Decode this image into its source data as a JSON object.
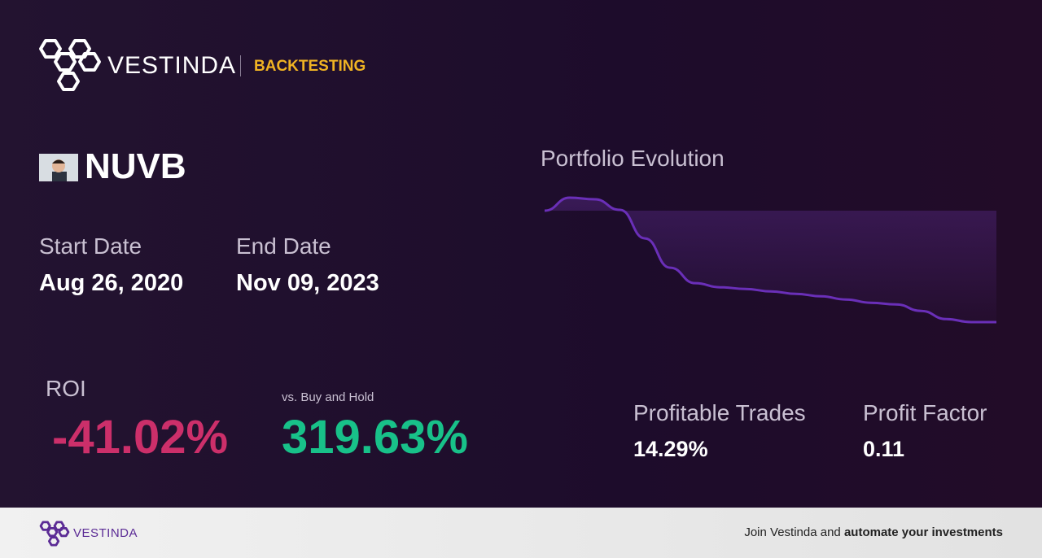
{
  "header": {
    "brand": "VESTINDA",
    "section": "BACKTESTING"
  },
  "asset": {
    "ticker": "NUVB"
  },
  "dates": {
    "start_label": "Start Date",
    "start": "Aug 26, 2020",
    "end_label": "End Date",
    "end": "Nov 09, 2023"
  },
  "roi": {
    "label": "ROI",
    "value": "-41.02%",
    "compare_label": "vs. Buy and Hold",
    "compare_value": "319.63%"
  },
  "stats": [
    {
      "label": "Profitable Trades",
      "value": "14.29%"
    },
    {
      "label": "Profit Factor",
      "value": "0.11"
    }
  ],
  "portfolio_chart": {
    "type": "line",
    "title": "Portfolio Evolution",
    "color": "#6a2fb8",
    "values": [
      100,
      104.8,
      104.2,
      100.3,
      89.8,
      79,
      73.3,
      71.8,
      71.2,
      70.3,
      69.4,
      68.5,
      67.3,
      66.1,
      65.5,
      63.1,
      60.1,
      58.98,
      58.98
    ]
  },
  "footer": {
    "brand": "VESTINDA",
    "cta_prefix": "Join Vestinda and",
    "cta_bold": "automate your investments"
  }
}
